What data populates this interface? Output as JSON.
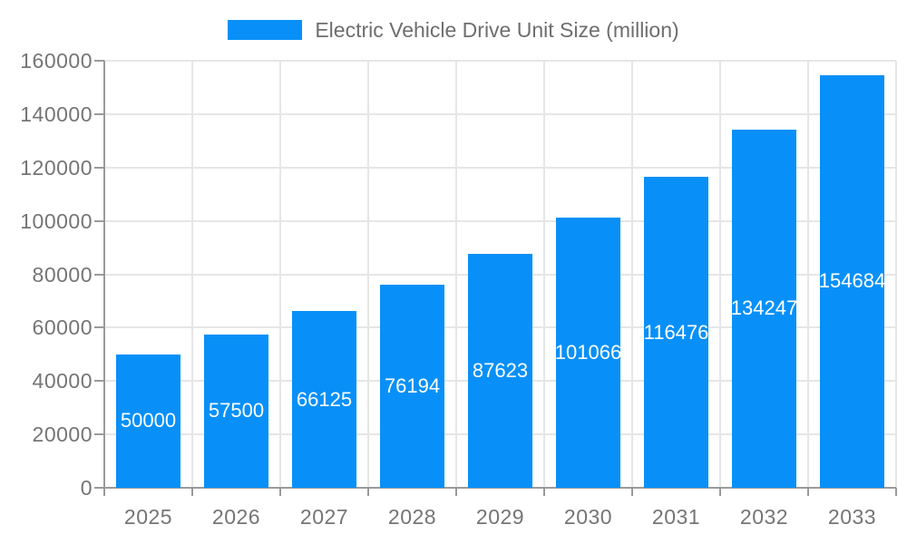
{
  "chart_data": {
    "type": "bar",
    "title": "Electric Vehicle Drive Unit Size (million)",
    "categories": [
      "2025",
      "2026",
      "2027",
      "2028",
      "2029",
      "2030",
      "2031",
      "2032",
      "2033"
    ],
    "values": [
      50000,
      57500,
      66125,
      76194,
      87623,
      101066,
      116476,
      134247,
      154684
    ],
    "bar_value_labels": [
      "50000",
      "57500",
      "66125",
      "76194",
      "87623",
      "101066",
      "116476",
      "134247",
      "154684"
    ],
    "xlabel": "",
    "ylabel": "",
    "ylim": [
      0,
      160000
    ],
    "ytick_step": 20000,
    "ytick_labels": [
      "0",
      "20000",
      "40000",
      "60000",
      "80000",
      "100000",
      "120000",
      "140000",
      "160000"
    ],
    "grid": true,
    "legend_position": "top-center",
    "colors": {
      "bar": "#0890f8",
      "bar_label": "#ffffff",
      "axis_text": "#757575",
      "legend_text": "#6e6e6e",
      "gridline": "#e6e6e6",
      "axis_line": "#9a9a9a"
    }
  }
}
